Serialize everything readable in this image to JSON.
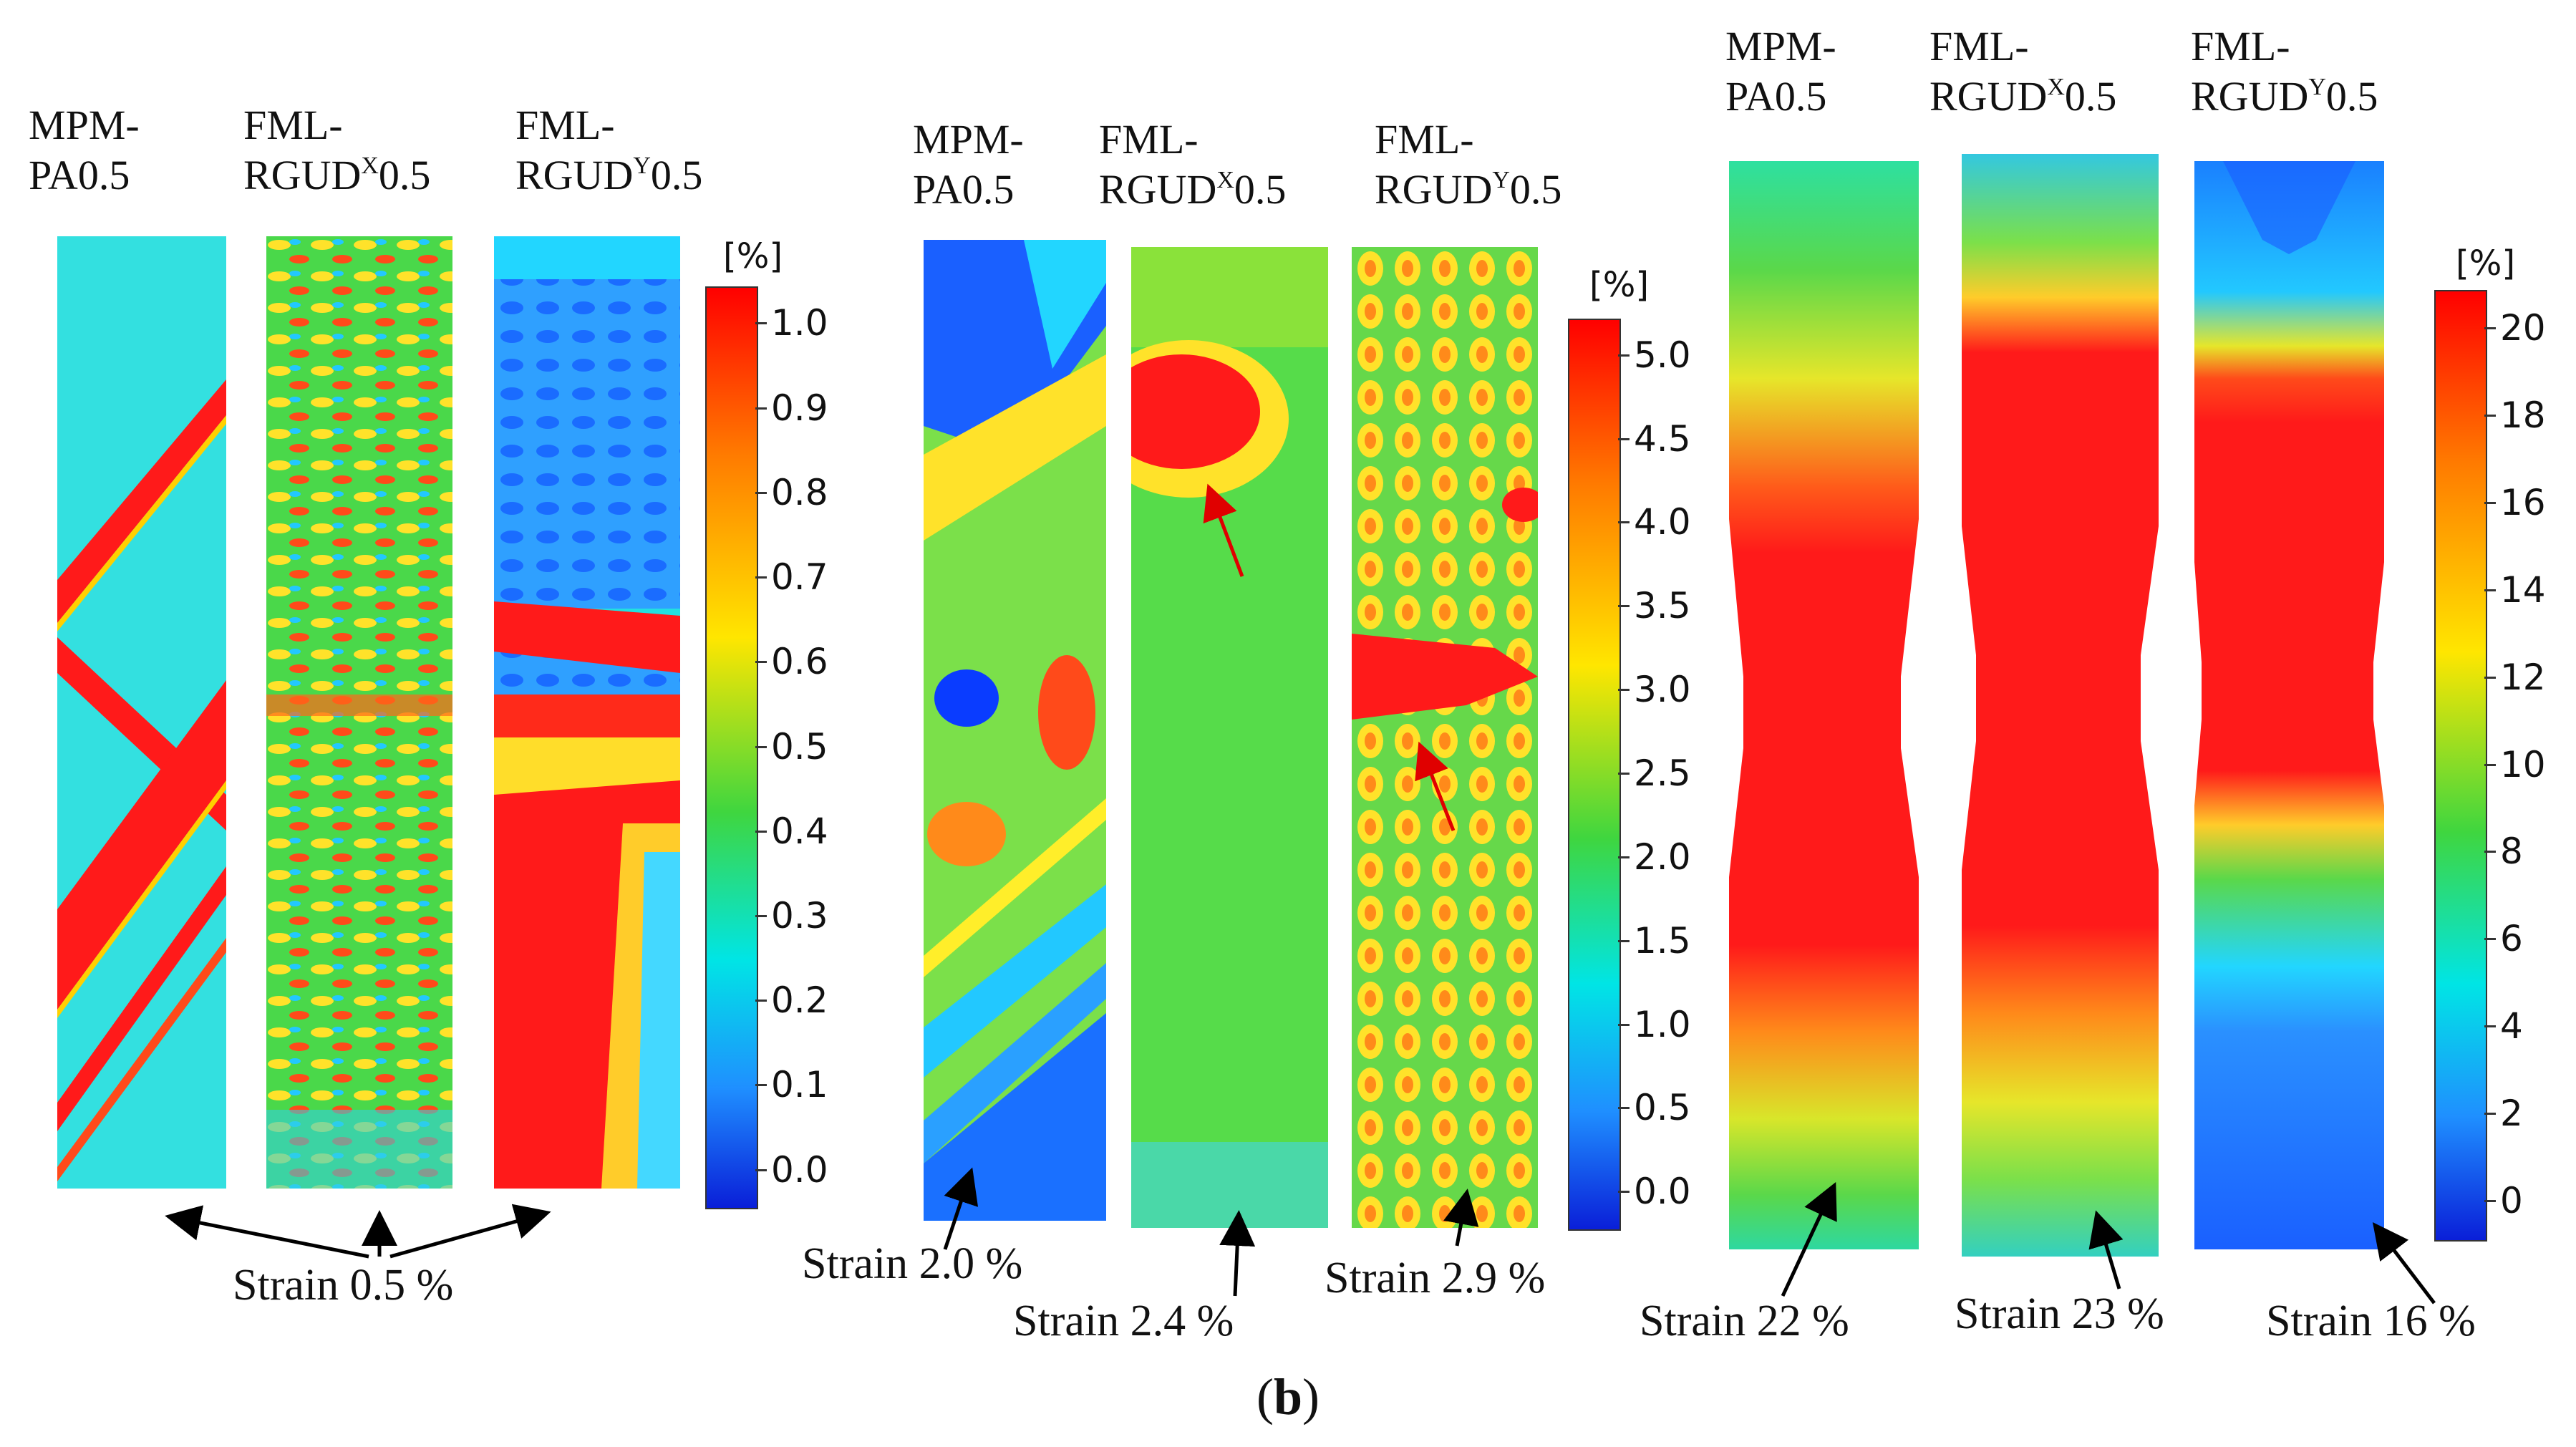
{
  "figure": {
    "caption_open": "(",
    "caption_letter": "b",
    "caption_close": ")",
    "panels": [
      {
        "labels": [
          {
            "line1": "MPM-",
            "line2": "PA0.5",
            "sup": ""
          },
          {
            "line1": "FML-",
            "line2": "RGUD",
            "sup": "X",
            "suffix": "0.5"
          },
          {
            "line1": "FML-",
            "line2": "RGUD",
            "sup": "Y",
            "suffix": "0.5"
          }
        ],
        "colorbar": {
          "unit": "[%]",
          "ticks": [
            "1.0",
            "0.9",
            "0.8",
            "0.7",
            "0.6",
            "0.5",
            "0.4",
            "0.3",
            "0.2",
            "0.1",
            "0.0"
          ],
          "min": 0.0,
          "max": 1.0
        },
        "strain_labels": [
          "Strain 0.5 %"
        ]
      },
      {
        "labels": [
          {
            "line1": "MPM-",
            "line2": "PA0.5",
            "sup": ""
          },
          {
            "line1": "FML-",
            "line2": "RGUD",
            "sup": "X",
            "suffix": "0.5"
          },
          {
            "line1": "FML-",
            "line2": "RGUD",
            "sup": "Y",
            "suffix": "0.5"
          }
        ],
        "colorbar": {
          "unit": "[%]",
          "ticks": [
            "5.0",
            "4.5",
            "4.0",
            "3.5",
            "3.0",
            "2.5",
            "2.0",
            "1.5",
            "1.0",
            "0.5",
            "0.0"
          ],
          "min": 0.0,
          "max": 5.0
        },
        "strain_labels": [
          "Strain 2.0 %",
          "Strain 2.4 %",
          "Strain 2.9 %"
        ]
      },
      {
        "labels": [
          {
            "line1": "MPM-",
            "line2": "PA0.5",
            "sup": ""
          },
          {
            "line1": "FML-",
            "line2": "RGUD",
            "sup": "X",
            "suffix": "0.5"
          },
          {
            "line1": "FML-",
            "line2": "RGUD",
            "sup": "Y",
            "suffix": "0.5"
          }
        ],
        "colorbar": {
          "unit": "[%]",
          "ticks": [
            "20",
            "18",
            "16",
            "14",
            "12",
            "10",
            "8",
            "6",
            "4",
            "2",
            "0"
          ],
          "min": 0,
          "max": 20
        },
        "strain_labels": [
          "Strain 22 %",
          "Strain 23 %",
          "Strain 16 %"
        ]
      }
    ],
    "colors": {
      "high": "#ff0000",
      "mid": "#3fd63f",
      "low": "#0a1fd8",
      "arrow": "#000000",
      "highlight_arrow": "#e00000"
    }
  }
}
